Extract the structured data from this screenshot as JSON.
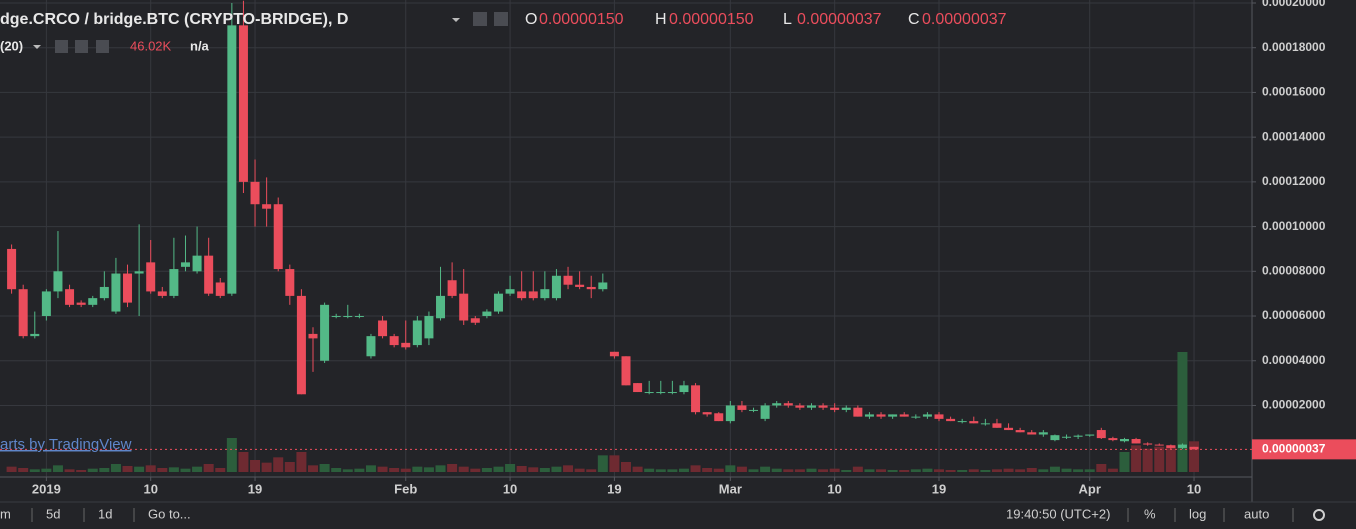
{
  "chart_data": {
    "type": "candlestick",
    "title": "dge.CRCO / bridge.BTC (CRYPTO-BRIDGE), D",
    "legend_values": [
      {
        "key": "O",
        "value": "0.00000150"
      },
      {
        "key": "H",
        "value": "0.00000150"
      },
      {
        "key": "L",
        "value": "0.00000037"
      },
      {
        "key": "C",
        "value": "0.00000037"
      }
    ],
    "volume_study": {
      "name": "(20)",
      "value": "46.02K",
      "extra": "n/a"
    },
    "watermark": "arts by TradingView",
    "last_price_label": "0.00000037",
    "x": [
      "2018-12-29",
      "2018-12-30",
      "2018-12-31",
      "2019-01-01",
      "2019-01-02",
      "2019-01-03",
      "2019-01-04",
      "2019-01-05",
      "2019-01-06",
      "2019-01-07",
      "2019-01-08",
      "2019-01-09",
      "2019-01-10",
      "2019-01-11",
      "2019-01-12",
      "2019-01-13",
      "2019-01-14",
      "2019-01-15",
      "2019-01-16",
      "2019-01-17",
      "2019-01-18",
      "2019-01-19",
      "2019-01-20",
      "2019-01-21",
      "2019-01-22",
      "2019-01-23",
      "2019-01-24",
      "2019-01-25",
      "2019-01-26",
      "2019-01-27",
      "2019-01-28",
      "2019-01-29",
      "2019-01-30",
      "2019-01-31",
      "2019-02-01",
      "2019-02-02",
      "2019-02-03",
      "2019-02-04",
      "2019-02-05",
      "2019-02-06",
      "2019-02-07",
      "2019-02-08",
      "2019-02-09",
      "2019-02-10",
      "2019-02-11",
      "2019-02-12",
      "2019-02-13",
      "2019-02-14",
      "2019-02-15",
      "2019-02-16",
      "2019-02-17",
      "2019-02-18",
      "2019-02-19",
      "2019-02-20",
      "2019-02-21",
      "2019-02-22",
      "2019-02-23",
      "2019-02-24",
      "2019-02-25",
      "2019-02-26",
      "2019-02-27",
      "2019-02-28",
      "2019-03-01",
      "2019-03-02",
      "2019-03-03",
      "2019-03-04",
      "2019-03-05",
      "2019-03-06",
      "2019-03-07",
      "2019-03-08",
      "2019-03-09",
      "2019-03-10",
      "2019-03-11",
      "2019-03-12",
      "2019-03-13",
      "2019-03-14",
      "2019-03-15",
      "2019-03-16",
      "2019-03-17",
      "2019-03-18",
      "2019-03-19",
      "2019-03-20",
      "2019-03-21",
      "2019-03-22",
      "2019-03-23",
      "2019-03-24",
      "2019-03-25",
      "2019-03-26",
      "2019-03-27",
      "2019-03-28",
      "2019-03-29",
      "2019-03-30",
      "2019-03-31",
      "2019-04-01",
      "2019-04-02",
      "2019-04-03",
      "2019-04-04",
      "2019-04-05",
      "2019-04-06",
      "2019-04-07",
      "2019-04-08",
      "2019-04-09",
      "2019-04-10"
    ],
    "open": [
      9e-05,
      7.2e-05,
      5.1e-05,
      6e-05,
      7.1e-05,
      7.2e-05,
      6.6e-05,
      6.5e-05,
      6.8e-05,
      6.2e-05,
      7.9e-05,
      7.9e-05,
      8.4e-05,
      7.1e-05,
      6.9e-05,
      8.2e-05,
      8e-05,
      8.7e-05,
      7.5e-05,
      7e-05,
      0.00019,
      0.00012,
      0.00011,
      0.00011,
      8.1e-05,
      6.9e-05,
      5.2e-05,
      4e-05,
      6e-05,
      6e-05,
      6e-05,
      4.2e-05,
      5.8e-05,
      5.1e-05,
      4.8e-05,
      4.7e-05,
      5e-05,
      5.9e-05,
      7.6e-05,
      7e-05,
      5.9e-05,
      6e-05,
      6.2e-05,
      7e-05,
      7.1e-05,
      7.1e-05,
      6.8e-05,
      6.8e-05,
      7.8e-05,
      7.4e-05,
      7.3e-05,
      7.2e-05,
      4.4e-05,
      4.2e-05,
      3e-05,
      2.6e-05,
      2.6e-05,
      2.6e-05,
      2.6e-05,
      2.9e-05,
      1.7e-05,
      1.65e-05,
      1.3e-05,
      2e-05,
      1.8e-05,
      1.4e-05,
      2e-05,
      2.1e-05,
      2e-05,
      1.9e-05,
      2e-05,
      1.9e-05,
      1.8e-05,
      1.9e-05,
      1.5e-05,
      1.6e-05,
      1.5e-05,
      1.6e-05,
      1.5e-05,
      1.5e-05,
      1.6e-05,
      1.4e-05,
      1.3e-05,
      1.3e-05,
      1.2e-05,
      1.2e-05,
      1e-05,
      9e-06,
      8e-06,
      7e-06,
      4.5e-06,
      6e-06,
      6e-06,
      6.5e-06,
      9e-06,
      5.4e-06,
      4e-06,
      5e-06,
      3e-06,
      2.5e-06,
      2.2e-06,
      1e-06,
      1.5e-06
    ],
    "high": [
      9.2e-05,
      7.4e-05,
      6.2e-05,
      7.2e-05,
      9.8e-05,
      7.4e-05,
      6.7e-05,
      6.9e-05,
      8e-05,
      8.6e-05,
      8.3e-05,
      0.000101,
      9.4e-05,
      7.3e-05,
      9.5e-05,
      9.6e-05,
      0.0001,
      9.5e-05,
      7.7e-05,
      0.0002,
      0.000201,
      0.00013,
      0.000122,
      0.000113,
      8.3e-05,
      7.2e-05,
      5.5e-05,
      6.6e-05,
      6.1e-05,
      6.5e-05,
      6.1e-05,
      5.2e-05,
      6e-05,
      5.2e-05,
      5.8e-05,
      6e-05,
      6.2e-05,
      8.2e-05,
      8.4e-05,
      8.1e-05,
      6e-05,
      6.3e-05,
      7.1e-05,
      7.8e-05,
      8e-05,
      8e-05,
      8e-05,
      8.1e-05,
      8.2e-05,
      8e-05,
      7.8e-05,
      7.9e-05,
      4.4e-05,
      4.2e-05,
      3e-05,
      3.1e-05,
      3.1e-05,
      3.1e-05,
      3.1e-05,
      3e-05,
      1.7e-05,
      1.7e-05,
      2.2e-05,
      2.2e-05,
      1.9e-05,
      2.1e-05,
      2.2e-05,
      2.2e-05,
      2.1e-05,
      2.1e-05,
      2.1e-05,
      2.1e-05,
      2e-05,
      2e-05,
      1.7e-05,
      1.7e-05,
      1.6e-05,
      1.7e-05,
      1.6e-05,
      1.7e-05,
      1.7e-05,
      1.5e-05,
      1.4e-05,
      1.5e-05,
      1.4e-05,
      1.4e-05,
      1.2e-05,
      1e-05,
      9e-06,
      9e-06,
      7e-06,
      7e-06,
      7e-06,
      7e-06,
      1e-05,
      6e-06,
      5.5e-06,
      5.5e-06,
      3.5e-06,
      3e-06,
      2.5e-06,
      3e-06,
      1.5e-06
    ],
    "low": [
      7e-05,
      5e-05,
      5e-05,
      5.8e-05,
      6.8e-05,
      6.4e-05,
      6.4e-05,
      6.4e-05,
      6.7e-05,
      6.1e-05,
      6.4e-05,
      6e-05,
      7e-05,
      6.8e-05,
      6.8e-05,
      8e-05,
      7.9e-05,
      6.9e-05,
      6.8e-05,
      6.9e-05,
      0.000115,
      0.0001,
      0.0001,
      8e-05,
      6.5e-05,
      2.5e-05,
      3.5e-05,
      3.9e-05,
      5.9e-05,
      5.9e-05,
      5.9e-05,
      4.1e-05,
      5e-05,
      4.6e-05,
      4.5e-05,
      4.6e-05,
      4.7e-05,
      5.8e-05,
      6.8e-05,
      5.6e-05,
      5.6e-05,
      5.9e-05,
      6.1e-05,
      6.9e-05,
      6.7e-05,
      6.7e-05,
      6.7e-05,
      6.7e-05,
      7.2e-05,
      7.2e-05,
      6.8e-05,
      7.1e-05,
      4.1e-05,
      2.9e-05,
      2.6e-05,
      2.5e-05,
      2.5e-05,
      2.5e-05,
      2.5e-05,
      1.6e-05,
      1.5e-05,
      1.3e-05,
      1.2e-05,
      1.7e-05,
      1.7e-05,
      1.3e-05,
      1.9e-05,
      1.9e-05,
      1.8e-05,
      1.8e-05,
      1.8e-05,
      1.7e-05,
      1.7e-05,
      1.5e-05,
      1.4e-05,
      1.4e-05,
      1.4e-05,
      1.5e-05,
      1.4e-05,
      1.4e-05,
      1.3e-05,
      1.3e-05,
      1.2e-05,
      1.2e-05,
      1.1e-05,
      1e-05,
      9e-06,
      8e-06,
      7e-06,
      6e-06,
      4e-06,
      5e-06,
      5e-06,
      6e-06,
      5e-06,
      4e-06,
      3.5e-06,
      3e-06,
      2e-06,
      2e-06,
      5e-07,
      5e-07,
      3.7e-07
    ],
    "close": [
      7.2e-05,
      5.1e-05,
      5.2e-05,
      7.1e-05,
      8e-05,
      6.5e-05,
      6.5e-05,
      6.8e-05,
      7.3e-05,
      7.9e-05,
      6.6e-05,
      8e-05,
      7.1e-05,
      6.9e-05,
      8.1e-05,
      8.4e-05,
      8.7e-05,
      7e-05,
      6.9e-05,
      0.00019,
      0.00012,
      0.00011,
      0.000108,
      8.1e-05,
      6.9e-05,
      2.5e-05,
      5e-05,
      6.5e-05,
      6e-05,
      6e-05,
      6e-05,
      5.1e-05,
      5.1e-05,
      4.7e-05,
      4.6e-05,
      5.8e-05,
      6e-05,
      6.9e-05,
      6.9e-05,
      5.8e-05,
      5.7e-05,
      6.2e-05,
      7e-05,
      7.2e-05,
      6.8e-05,
      6.8e-05,
      7.2e-05,
      7.8e-05,
      7.4e-05,
      7.3e-05,
      7.2e-05,
      7.5e-05,
      4.2e-05,
      2.9e-05,
      2.6e-05,
      2.6e-05,
      2.6e-05,
      2.6e-05,
      2.9e-05,
      1.7e-05,
      1.6e-05,
      1.3e-05,
      2e-05,
      1.8e-05,
      1.8e-05,
      2e-05,
      2.1e-05,
      2e-05,
      1.9e-05,
      2e-05,
      1.9e-05,
      1.8e-05,
      1.9e-05,
      1.5e-05,
      1.6e-05,
      1.5e-05,
      1.6e-05,
      1.5e-05,
      1.5e-05,
      1.6e-05,
      1.4e-05,
      1.3e-05,
      1.3e-05,
      1.2e-05,
      1.2e-05,
      1e-05,
      9e-06,
      8e-06,
      7e-06,
      8e-06,
      6.7e-06,
      6e-06,
      6.5e-06,
      7e-06,
      5.4e-06,
      4.5e-06,
      5e-06,
      3e-06,
      2.5e-06,
      2.2e-06,
      1e-06,
      2.5e-06,
      3.7e-07
    ],
    "volume": [
      8000,
      6000,
      4000,
      5000,
      10000,
      4000,
      3000,
      5000,
      6000,
      12000,
      9000,
      8000,
      10000,
      6000,
      7000,
      5000,
      8000,
      12000,
      6000,
      51000,
      30000,
      18000,
      14000,
      22000,
      15000,
      30000,
      10000,
      12000,
      6000,
      4000,
      5000,
      10000,
      8000,
      6000,
      5000,
      8000,
      7000,
      10000,
      12000,
      8000,
      5000,
      6000,
      8000,
      12000,
      9000,
      7000,
      6000,
      8000,
      10000,
      5000,
      4000,
      25000,
      25000,
      15000,
      8000,
      5000,
      4000,
      4000,
      5000,
      10000,
      6000,
      5000,
      10000,
      8000,
      4000,
      8000,
      5000,
      4000,
      4000,
      5000,
      4000,
      5000,
      3000,
      8000,
      4000,
      4000,
      3000,
      3000,
      4000,
      5000,
      4000,
      3000,
      3000,
      4000,
      3000,
      4000,
      5000,
      4000,
      6000,
      4000,
      8000,
      5000,
      4000,
      4000,
      12000,
      5000,
      30000,
      40000,
      35000,
      38000,
      40000,
      180000,
      46020
    ],
    "up_color": "#53b987",
    "down_color": "#eb4d5c",
    "volume_up_color": "#2c5e3c",
    "volume_down_color": "#6e2a31",
    "xlim": [
      "2018-12-28",
      "2019-04-15"
    ],
    "xticks": [
      {
        "value": "2019-01-01",
        "label": "2019"
      },
      {
        "value": "2019-01-10",
        "label": "10"
      },
      {
        "value": "2019-01-19",
        "label": "19"
      },
      {
        "value": "2019-02-01",
        "label": "Feb"
      },
      {
        "value": "2019-02-10",
        "label": "10"
      },
      {
        "value": "2019-02-19",
        "label": "19"
      },
      {
        "value": "2019-03-01",
        "label": "Mar"
      },
      {
        "value": "2019-03-10",
        "label": "10"
      },
      {
        "value": "2019-03-19",
        "label": "19"
      },
      {
        "value": "2019-04-01",
        "label": "Apr"
      },
      {
        "value": "2019-04-10",
        "label": "10"
      }
    ],
    "ylim": [
      -1.2e-05,
      0.0002
    ],
    "yticks": [
      {
        "value": 2e-05,
        "label": "0.00002000"
      },
      {
        "value": 4e-05,
        "label": "0.00004000"
      },
      {
        "value": 6e-05,
        "label": "0.00006000"
      },
      {
        "value": 8e-05,
        "label": "0.00008000"
      },
      {
        "value": 0.0001,
        "label": "0.00010000"
      },
      {
        "value": 0.00012,
        "label": "0.00012000"
      },
      {
        "value": 0.00014,
        "label": "0.00014000"
      },
      {
        "value": 0.00016,
        "label": "0.00016000"
      },
      {
        "value": 0.00018,
        "label": "0.00018000"
      },
      {
        "value": 0.0002,
        "label": "0.00020000"
      }
    ],
    "grid": true,
    "toolbar": {
      "left": [
        "m",
        "5d",
        "1d",
        "Go to..."
      ],
      "right": [
        "19:40:50 (UTC+2)",
        "%",
        "log",
        "auto"
      ]
    }
  }
}
